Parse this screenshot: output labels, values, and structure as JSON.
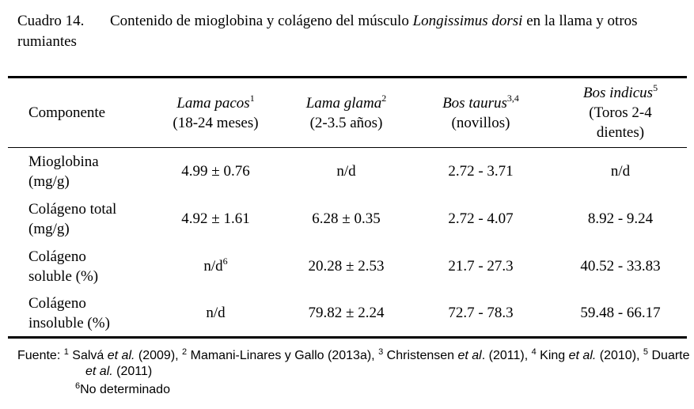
{
  "caption": {
    "label": "Cuadro 14.",
    "before": "Contenido de mioglobina y colágeno del músculo ",
    "italic": "Longissimus dorsi",
    "after": " en la llama y otros rumiantes"
  },
  "table": {
    "header": [
      {
        "name": "Componente"
      },
      {
        "name": "Lama pacos",
        "sup": "1",
        "detail": [
          "(18-24 meses)"
        ]
      },
      {
        "name": "Lama glama",
        "sup": "2",
        "detail": [
          "(2-3.5 años)"
        ]
      },
      {
        "name": "Bos taurus",
        "sup": "3,4",
        "detail": [
          "(novillos)"
        ]
      },
      {
        "name": "Bos indicus",
        "sup": "5",
        "detail": [
          "(Toros 2-4",
          "dientes)"
        ]
      }
    ],
    "rows": [
      [
        [
          "Mioglobina",
          "(mg/g)"
        ],
        {
          "text": "4.99 ± 0.76"
        },
        {
          "text": "n/d"
        },
        {
          "text": "2.72 - 3.71"
        },
        {
          "text": "n/d"
        }
      ],
      [
        [
          "Colágeno total",
          "(mg/g)"
        ],
        {
          "text": "4.92 ± 1.61"
        },
        {
          "text": "6.28 ± 0.35"
        },
        {
          "text": "2.72 - 4.07"
        },
        {
          "text": "8.92 - 9.24"
        }
      ],
      [
        [
          "Colágeno",
          "soluble (%)"
        ],
        {
          "text": "n/d",
          "sup": "6"
        },
        {
          "text": "20.28 ± 2.53"
        },
        {
          "text": "21.7 - 27.3"
        },
        {
          "text": "40.52 - 33.83"
        }
      ],
      [
        [
          "Colágeno",
          "insoluble (%)"
        ],
        {
          "text": "n/d"
        },
        {
          "text": "79.82 ± 2.24"
        },
        {
          "text": "72.7 - 78.3"
        },
        {
          "text": "59.48 - 66.17"
        }
      ]
    ]
  },
  "footer": {
    "label": "Fuente:",
    "refs": [
      {
        "num": "1",
        "pre": "Salvá ",
        "em": "et al.",
        "post": " (2009),"
      },
      {
        "num": "2",
        "pre": "Mamani-Linares y Gallo (2013a),"
      },
      {
        "num": "3",
        "pre": "Christensen ",
        "em": "et al",
        "post": ". (2011),"
      },
      {
        "num": "4",
        "pre": "King ",
        "em": "et al.",
        "post": " (2010),"
      },
      {
        "num": "5",
        "pre": "Duarte ",
        "em": "et al.",
        "post": " (2011)"
      }
    ],
    "note": {
      "num": "6",
      "text": "No determinado"
    }
  }
}
